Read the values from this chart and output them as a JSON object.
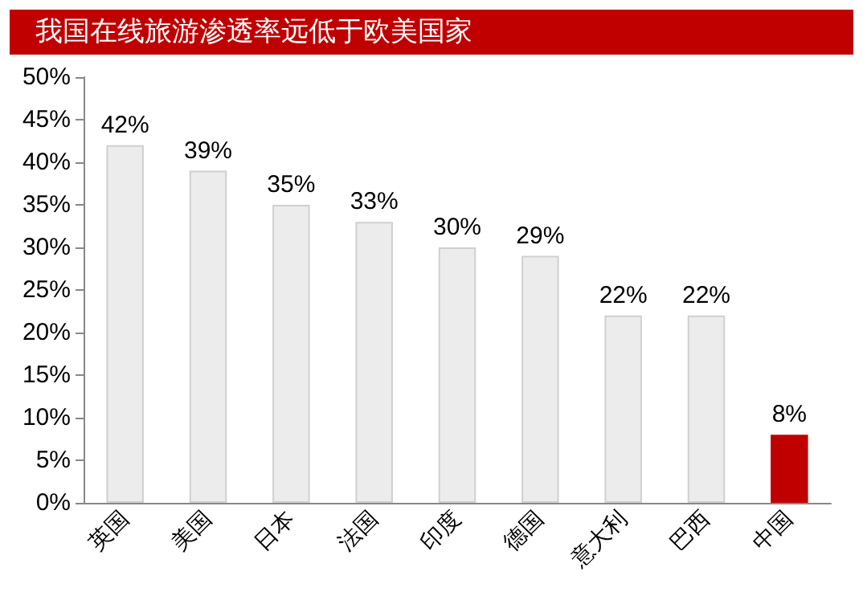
{
  "chart_data": {
    "type": "bar",
    "title": "我国在线旅游渗透率远低于欧美国家",
    "categories": [
      "英国",
      "美国",
      "日本",
      "法国",
      "印度",
      "德国",
      "意大利",
      "巴西",
      "中国"
    ],
    "values": [
      42,
      39,
      35,
      33,
      30,
      29,
      22,
      22,
      8
    ],
    "colors": [
      "#ececec",
      "#ececec",
      "#ececec",
      "#ececec",
      "#ececec",
      "#ececec",
      "#ececec",
      "#ececec",
      "#c00000"
    ],
    "value_labels": [
      "42%",
      "39%",
      "35%",
      "33%",
      "30%",
      "29%",
      "22%",
      "22%",
      "8%"
    ],
    "ylim": [
      0,
      50
    ],
    "yticks": [
      {
        "value": 0,
        "label": "0%"
      },
      {
        "value": 5,
        "label": "5%"
      },
      {
        "value": 10,
        "label": "10%"
      },
      {
        "value": 15,
        "label": "15%"
      },
      {
        "value": 20,
        "label": "20%"
      },
      {
        "value": 25,
        "label": "25%"
      },
      {
        "value": 30,
        "label": "30%"
      },
      {
        "value": 35,
        "label": "35%"
      },
      {
        "value": 40,
        "label": "40%"
      },
      {
        "value": 45,
        "label": "45%"
      },
      {
        "value": 50,
        "label": "50%"
      }
    ],
    "grid": false
  }
}
